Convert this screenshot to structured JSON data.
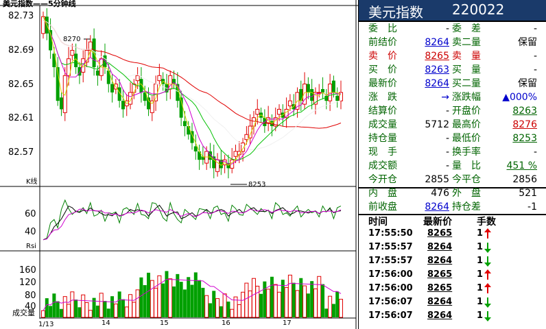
{
  "chart": {
    "title": "美元指数——5分钟线",
    "kline_label": "K线",
    "rsi_label": "Rsi",
    "vol_label": "成交量",
    "high_marker": "8270",
    "low_marker": "8253",
    "colors": {
      "up": "#e00000",
      "down": "#00a000",
      "ma_red": "#e00000",
      "ma_magenta": "#d000d0",
      "ma_green": "#00c000",
      "ma_white": "#f0f0f0",
      "ma_yellow": "#d8d800",
      "axis": "#000000"
    }
  },
  "chart_data": [
    {
      "type": "candlestick",
      "title": "美元指数——5分钟线",
      "ylim": [
        82.53,
        82.74
      ],
      "y_ticks": [
        "82.73",
        "82.69",
        "82.65",
        "82.61",
        "82.57"
      ],
      "x_ticks": [
        "1/13",
        "14",
        "15",
        "16",
        "17"
      ],
      "annotations": [
        "8270",
        "8253"
      ]
    },
    {
      "type": "line",
      "name": "Rsi",
      "y_ticks": [
        "60",
        "40"
      ]
    },
    {
      "type": "bar",
      "name": "成交量",
      "y_ticks": [
        "160",
        "120",
        "80",
        "40"
      ]
    }
  ],
  "panel": {
    "title_name": "美元指数",
    "title_code": "220022",
    "quotes": [
      {
        "l1": "委　比",
        "v1": "-",
        "l2": "委　差",
        "v2": "-"
      },
      {
        "l1": "前结价",
        "v1": "8264",
        "l2": "卖二量",
        "v2": "保留"
      },
      {
        "l1": "卖　价",
        "v1": "8265",
        "l2": "卖　量",
        "v2": "-"
      },
      {
        "l1": "买　价",
        "v1": "8263",
        "l2": "买　量",
        "v2": "-"
      },
      {
        "l1": "最新价",
        "v1": "8264",
        "l2": "买二量",
        "v2": "保留"
      },
      {
        "l1": "涨　跌",
        "v1": "→",
        "l2": "涨跌幅",
        "v2": "▲000%"
      },
      {
        "l1": "结算价",
        "v1": "-",
        "l2": "开盘价",
        "v2": "8263"
      },
      {
        "l1": "成交量",
        "v1": "5712",
        "l2": "最高价",
        "v2": "8276"
      },
      {
        "l1": "持仓量",
        "v1": "-",
        "l2": "最低价",
        "v2": "8253"
      },
      {
        "l1": "现　手",
        "v1": "-",
        "l2": "换手率",
        "v2": "-"
      },
      {
        "l1": "成交额",
        "v1": "-",
        "l2": "量　比",
        "v2": "451 %"
      },
      {
        "l1": "今开仓",
        "v1": "2855",
        "l2": "今平仓",
        "v2": "2856"
      },
      {
        "l1": "内　盘",
        "v1": "476",
        "l2": "外　盘",
        "v2": "521"
      },
      {
        "l1": "前收盘",
        "v1": "8264",
        "l2": "持仓差",
        "v2": "-1"
      }
    ],
    "ticks_header": {
      "time": "时间",
      "price": "最新价",
      "hands": "手数"
    },
    "ticks": [
      {
        "time": "17:55:50",
        "price": "8265",
        "hands": "1",
        "dir": "up"
      },
      {
        "time": "17:55:57",
        "price": "8264",
        "hands": "1",
        "dir": "down"
      },
      {
        "time": "17:55:57",
        "price": "8264",
        "hands": "1",
        "dir": "down"
      },
      {
        "time": "17:56:00",
        "price": "8265",
        "hands": "1",
        "dir": "up"
      },
      {
        "time": "17:56:00",
        "price": "8265",
        "hands": "1",
        "dir": "up"
      },
      {
        "time": "17:56:07",
        "price": "8264",
        "hands": "1",
        "dir": "down"
      },
      {
        "time": "17:56:07",
        "price": "8264",
        "hands": "1",
        "dir": "down"
      }
    ]
  }
}
